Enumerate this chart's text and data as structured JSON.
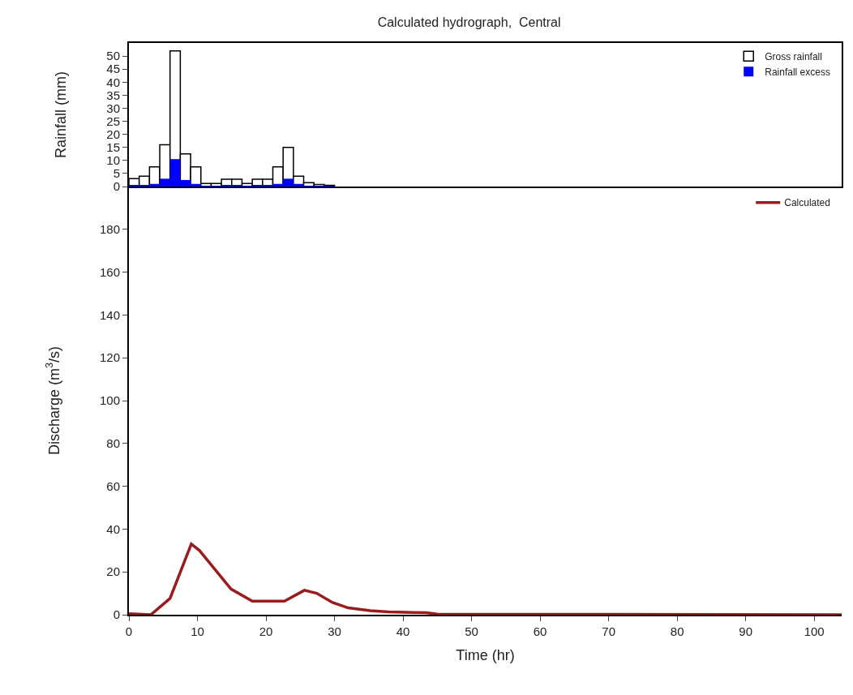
{
  "chart_data": [
    {
      "type": "bar",
      "title": "Calculated hydrograph,  Central",
      "ylabel": "Rainfall (mm)",
      "x": [
        0.75,
        2.25,
        3.75,
        5.25,
        6.75,
        8.25,
        9.75,
        11.25,
        12.75,
        14.25,
        15.75,
        17.25,
        18.75,
        20.25,
        21.75,
        23.25,
        24.75,
        26.25,
        27.75,
        29.25
      ],
      "xlim": [
        0,
        104
      ],
      "ylim": [
        0,
        55
      ],
      "yticks": [
        0,
        5,
        10,
        15,
        20,
        25,
        30,
        35,
        40,
        45,
        50
      ],
      "tick_labels": "y",
      "legend": "top right",
      "grid": false,
      "series": [
        {
          "name": "Gross rainfall",
          "color": "#ffffff",
          "values": [
            3,
            4,
            7.5,
            16,
            52,
            12.5,
            7.5,
            1.2,
            1.2,
            2.8,
            2.8,
            1.2,
            2.8,
            2.8,
            7.5,
            15,
            4,
            1.5,
            0.8,
            0.5
          ]
        },
        {
          "name": "Rainfall excess",
          "color": "#0000ff",
          "values": [
            0.5,
            0.5,
            1,
            3,
            10.5,
            2.5,
            1,
            0.3,
            0.3,
            0.5,
            0.5,
            0.3,
            0.5,
            0.5,
            1,
            3,
            1,
            0.3,
            0.2,
            0.1
          ]
        }
      ]
    },
    {
      "type": "line",
      "xlabel": "Time (hr)",
      "ylabel": "Discharge (m$^{3}$/s)",
      "xlim": [
        0,
        104
      ],
      "xticks": [
        0,
        10,
        20,
        30,
        40,
        50,
        60,
        70,
        80,
        90,
        100
      ],
      "ylim": [
        0,
        200
      ],
      "yticks": [
        0,
        20,
        40,
        60,
        80,
        100,
        120,
        140,
        160,
        180
      ],
      "legend": "top right",
      "grid": false,
      "marker": "none",
      "line_style": "solid",
      "series": [
        {
          "name": "Calculated",
          "color": "#9b1c1c",
          "x": [
            0,
            3.2,
            6,
            9.1,
            10.3,
            12.6,
            14.9,
            18,
            22.7,
            25.6,
            27.4,
            29.7,
            32,
            35.2,
            37.9,
            43.4,
            45,
            104
          ],
          "values": [
            0.5,
            0,
            7.6,
            33,
            30,
            21,
            12,
            6.3,
            6.3,
            11.4,
            10,
            5.7,
            3.2,
            1.9,
            1.3,
            0.9,
            0.3,
            0
          ]
        }
      ]
    }
  ]
}
